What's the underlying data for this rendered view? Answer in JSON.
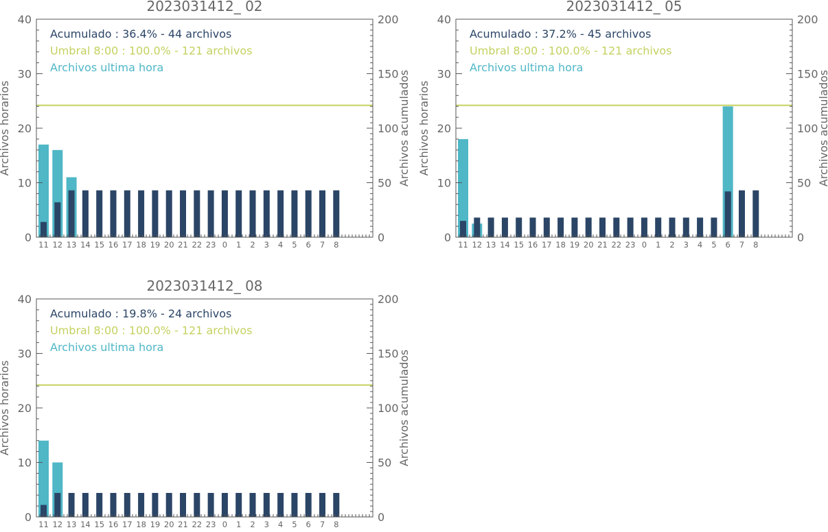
{
  "colors": {
    "hourly": "#4fb7c6",
    "accumulated": "#2b4566",
    "threshold": "#c5d15f",
    "axis": "#555555",
    "text": "#666666"
  },
  "axis_labels": {
    "left": "Archivos horarios",
    "right": "Archivos acumulados"
  },
  "chart_data": [
    {
      "type": "bar",
      "title": "2023031412_ 02",
      "categories": [
        "11",
        "12",
        "13",
        "14",
        "15",
        "16",
        "17",
        "18",
        "19",
        "20",
        "21",
        "22",
        "23",
        "0",
        "1",
        "2",
        "3",
        "4",
        "5",
        "6",
        "7",
        "8"
      ],
      "series": [
        {
          "name": "Archivos ultima hora",
          "axis": "left",
          "values": [
            17,
            16,
            11,
            0,
            0,
            0,
            0,
            0,
            0,
            0,
            0,
            0,
            0,
            0,
            0,
            0,
            0,
            0,
            0,
            0,
            0,
            0
          ]
        },
        {
          "name": "Acumulado",
          "axis": "right",
          "values": [
            14,
            32,
            43,
            43,
            43,
            43,
            43,
            43,
            43,
            43,
            43,
            43,
            43,
            43,
            43,
            43,
            43,
            43,
            43,
            43,
            43,
            43
          ]
        }
      ],
      "threshold": {
        "axis": "right",
        "value": 121
      },
      "legend": [
        "Acumulado : 36.4% - 44 archivos",
        "Umbral 8:00 : 100.0% - 121 archivos",
        "Archivos ultima hora"
      ],
      "ylim_left": [
        0,
        40
      ],
      "ylim_right": [
        0,
        200
      ],
      "yticks_left": [
        "0",
        "10",
        "20",
        "30",
        "40"
      ],
      "yticks_right": [
        "0",
        "50",
        "100",
        "150",
        "200"
      ],
      "legend_position": "top-left"
    },
    {
      "type": "bar",
      "title": "2023031412_ 05",
      "categories": [
        "11",
        "12",
        "13",
        "14",
        "15",
        "16",
        "17",
        "18",
        "19",
        "20",
        "21",
        "22",
        "23",
        "0",
        "1",
        "2",
        "3",
        "4",
        "5",
        "6",
        "7",
        "8"
      ],
      "series": [
        {
          "name": "Archivos ultima hora",
          "axis": "left",
          "values": [
            18,
            2.5,
            0,
            0,
            0,
            0,
            0,
            0,
            0,
            0,
            0,
            0,
            0,
            0,
            0,
            0,
            0,
            0,
            0,
            24,
            0,
            0
          ]
        },
        {
          "name": "Acumulado",
          "axis": "right",
          "values": [
            15,
            18,
            18,
            18,
            18,
            18,
            18,
            18,
            18,
            18,
            18,
            18,
            18,
            18,
            18,
            18,
            18,
            18,
            18,
            42,
            43,
            43
          ]
        }
      ],
      "threshold": {
        "axis": "right",
        "value": 121
      },
      "legend": [
        "Acumulado : 37.2% - 45 archivos",
        "Umbral 8:00 : 100.0% - 121 archivos",
        "Archivos ultima hora"
      ],
      "ylim_left": [
        0,
        40
      ],
      "ylim_right": [
        0,
        200
      ],
      "yticks_left": [
        "0",
        "10",
        "20",
        "30",
        "40"
      ],
      "yticks_right": [
        "0",
        "50",
        "100",
        "150",
        "200"
      ],
      "legend_position": "top-left"
    },
    {
      "type": "bar",
      "title": "2023031412_ 08",
      "categories": [
        "11",
        "12",
        "13",
        "14",
        "15",
        "16",
        "17",
        "18",
        "19",
        "20",
        "21",
        "22",
        "23",
        "0",
        "1",
        "2",
        "3",
        "4",
        "5",
        "6",
        "7",
        "8"
      ],
      "series": [
        {
          "name": "Archivos ultima hora",
          "axis": "left",
          "values": [
            14,
            10,
            0,
            0,
            0,
            0,
            0,
            0,
            0,
            0,
            0,
            0,
            0,
            0,
            0,
            0,
            0,
            0,
            0,
            0,
            0,
            0
          ]
        },
        {
          "name": "Acumulado",
          "axis": "right",
          "values": [
            11,
            22,
            22,
            22,
            22,
            22,
            22,
            22,
            22,
            22,
            22,
            22,
            22,
            22,
            22,
            22,
            22,
            22,
            22,
            22,
            22,
            22
          ]
        }
      ],
      "threshold": {
        "axis": "right",
        "value": 121
      },
      "legend": [
        "Acumulado : 19.8% - 24 archivos",
        "Umbral 8:00 : 100.0% - 121 archivos",
        "Archivos ultima hora"
      ],
      "ylim_left": [
        0,
        40
      ],
      "ylim_right": [
        0,
        200
      ],
      "yticks_left": [
        "0",
        "10",
        "20",
        "30",
        "40"
      ],
      "yticks_right": [
        "0",
        "50",
        "100",
        "150",
        "200"
      ],
      "legend_position": "top-left"
    }
  ]
}
